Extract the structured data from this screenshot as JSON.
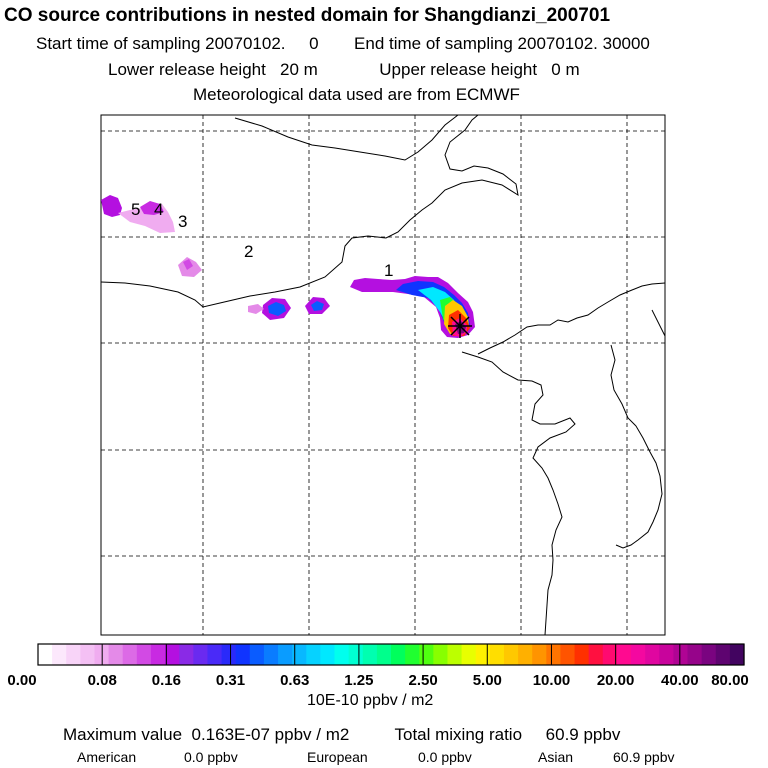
{
  "header": {
    "title": "CO  source contributions in nested domain for Shangdianzi_200701",
    "start_label": "Start time of sampling",
    "start_value": "20070102.     0",
    "end_label": "End time of sampling",
    "end_value": "20070102. 30000",
    "lower_label": "Lower release height",
    "lower_value": "20 m",
    "upper_label": "Upper release height",
    "upper_value": "0 m",
    "met_line": "Meteorological data used are from ECMWF"
  },
  "chart_data": {
    "type": "heatmap",
    "title": "CO  source contributions in nested domain for Shangdianzi_200701",
    "receptor": "Shangdianzi",
    "grid": "dashed lines, 5 columns x 5 rows",
    "source_region_labels": [
      "1",
      "2",
      "3",
      "4",
      "5"
    ],
    "colorbar": {
      "tick_labels": [
        "0.00",
        "0.08",
        "0.16",
        "0.31",
        "0.63",
        "1.25",
        "2.50",
        "5.00",
        "10.00",
        "20.00",
        "40.00",
        "80.00"
      ],
      "tick_values": [
        0,
        0.08,
        0.16,
        0.31,
        0.63,
        1.25,
        2.5,
        5,
        10,
        20,
        40,
        80
      ],
      "unit": "10E-10 ppbv / m2",
      "colors": [
        "#ffffff",
        "#fce8fc",
        "#f8d4f8",
        "#f4c0f4",
        "#f0acf0",
        "#e48ae8",
        "#dc6ae6",
        "#d24ae4",
        "#c82ae2",
        "#b410e0",
        "#8a2ae6",
        "#6a2af0",
        "#4a2af8",
        "#2a2afa",
        "#1034ff",
        "#0a5cff",
        "#0a7cff",
        "#0a9cff",
        "#08b8ff",
        "#06d2ff",
        "#00e8ff",
        "#00ffee",
        "#00ffd2",
        "#00ffb0",
        "#00ff8c",
        "#00ff5c",
        "#20ff30",
        "#50ff10",
        "#88ff00",
        "#bcff00",
        "#e8ff00",
        "#fff200",
        "#ffde00",
        "#ffc800",
        "#ffb000",
        "#ff9400",
        "#ff7400",
        "#ff5400",
        "#ff3000",
        "#ff1040",
        "#ff0a70",
        "#ff0a90",
        "#f408a0",
        "#e006a0",
        "#c8049c",
        "#b00494",
        "#96048a",
        "#7a0480",
        "#5e0470",
        "#420460"
      ]
    },
    "summary": {
      "max_label": "Maximum value",
      "max_value": "0.163E-07 ppbv / m2",
      "total_label": "Total mixing ratio",
      "total_value": "60.9 ppbv",
      "american_label": "American",
      "american_value": "0.0 ppbv",
      "european_label": "European",
      "european_value": "0.0 ppbv",
      "asian_label": "Asian",
      "asian_value": "60.9 ppbv"
    }
  }
}
